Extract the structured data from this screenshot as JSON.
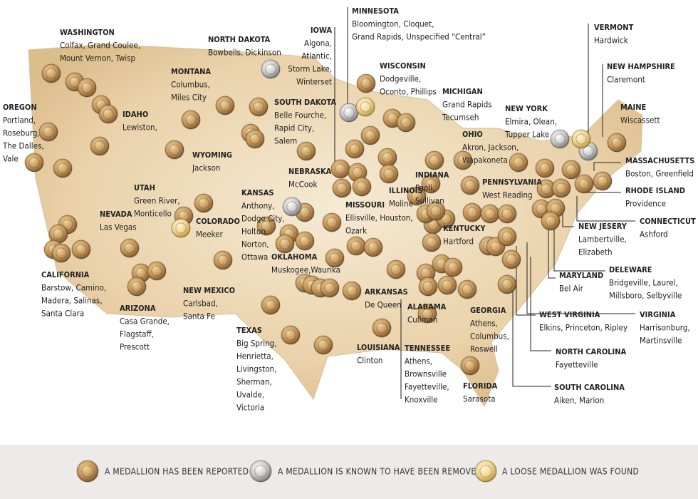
{
  "labels": [
    {
      "state": "WASHINGTON",
      "places": [
        "Colfax, Grand Coulee,",
        "Mount Vernon, Twisp"
      ]
    },
    {
      "state": "OREGON",
      "places": [
        "Portland,",
        "Roseburg,",
        "The Dalles,",
        "Vale"
      ]
    },
    {
      "state": "IDAHO",
      "places": [
        "Lewiston,"
      ]
    },
    {
      "state": "MONTANA",
      "places": [
        "Columbus,",
        "Miles City"
      ]
    },
    {
      "state": "NORTH DAKOTA",
      "places": [
        "Bowbells, Dickinson"
      ]
    },
    {
      "state": "SOUTH DAKOTA",
      "places": [
        "Belle Fourche,",
        "Rapid City,",
        "Salem"
      ]
    },
    {
      "state": "WYOMING",
      "places": [
        "Jackson"
      ]
    },
    {
      "state": "UTAH",
      "places": [
        "Green River,",
        "Monticello"
      ]
    },
    {
      "state": "NEVADA",
      "places": [
        "Las Vegas"
      ]
    },
    {
      "state": "COLORADO",
      "places": [
        "Meeker"
      ]
    },
    {
      "state": "CALIFORNIA",
      "places": [
        "Barstow, Camino,",
        "Madera, Salinas,",
        "Santa Clara"
      ]
    },
    {
      "state": "ARIZONA",
      "places": [
        "Casa Grande,",
        "Flagstaff,",
        "Prescott"
      ]
    },
    {
      "state": "NEW MEXICO",
      "places": [
        "Carlsbad,",
        "Santa Fe"
      ]
    },
    {
      "state": "TEXAS",
      "places": [
        "Big Spring,",
        "Henrietta,",
        "Livingston,",
        "Sherman,",
        "Uvalde,",
        "Victoria"
      ]
    },
    {
      "state": "KANSAS",
      "places": [
        "Anthony,",
        "Dodge City,",
        "Holton,",
        "Norton,",
        "Ottawa"
      ]
    },
    {
      "state": "NEBRASKA",
      "places": [
        "McCook"
      ]
    },
    {
      "state": "OKLAHOMA",
      "places": [
        "Muskogee,Waurika"
      ]
    },
    {
      "state": "IOWA",
      "places": [
        "Algona,",
        "Atlantic,",
        "Storm Lake,",
        "Winterset"
      ]
    },
    {
      "state": "MINNESOTA",
      "places": [
        "Bloomington, Cloquet,",
        "Grand Rapids, Unspecified “Central”"
      ]
    },
    {
      "state": "WISCONSIN",
      "places": [
        "Dodgeville,",
        "Oconto, Phillips"
      ]
    },
    {
      "state": "MICHIGAN",
      "places": [
        "Grand Rapids",
        "Tecumseh"
      ]
    },
    {
      "state": "MISSOURI",
      "places": [
        "Ellisville, Houston,",
        "Ozark"
      ]
    },
    {
      "state": "ILLINOIS",
      "places": [
        "Moline"
      ]
    },
    {
      "state": "INDIANA",
      "places": [
        "Paoli,",
        "Sullivan"
      ]
    },
    {
      "state": "OHIO",
      "places": [
        "Akron, Jackson,",
        "Wapakoneta"
      ]
    },
    {
      "state": "ARKANSAS",
      "places": [
        "De Queen"
      ]
    },
    {
      "state": "LOUISIANA",
      "places": [
        "Clinton"
      ]
    },
    {
      "state": "ALABAMA",
      "places": [
        "Cullman"
      ]
    },
    {
      "state": "TENNESSEE",
      "places": [
        "Athens,",
        "Brownsville",
        "Fayetteville,",
        "Knoxville"
      ]
    },
    {
      "state": "KENTUCKY",
      "places": [
        "Hartford"
      ]
    },
    {
      "state": "GEORGIA",
      "places": [
        "Athens,",
        "Columbus,",
        "Roswell"
      ]
    },
    {
      "state": "FLORIDA",
      "places": [
        "Sarasota"
      ]
    },
    {
      "state": "NEW YORK",
      "places": [
        "Elmira, Olean,",
        "Tupper Lake"
      ]
    },
    {
      "state": "PENNSYLVANIA",
      "places": [
        "West Reading"
      ]
    },
    {
      "state": "VERMONT",
      "places": [
        "Hardwick"
      ]
    },
    {
      "state": "NEW HAMPSHIRE",
      "places": [
        "Claremont"
      ]
    },
    {
      "state": "MAINE",
      "places": [
        "Wiscassett"
      ]
    },
    {
      "state": "MASSACHUSETTS",
      "places": [
        "Boston, Greenfield"
      ]
    },
    {
      "state": "RHODE ISLAND",
      "places": [
        "Providence"
      ]
    },
    {
      "state": "CONNECTICUT",
      "places": [
        "Ashford"
      ]
    },
    {
      "state": "NEW JESERY",
      "places": [
        "Lambertville,",
        "Elizabeth"
      ]
    },
    {
      "state": "DELEWARE",
      "places": [
        "Bridgeville, Laurel,",
        "Millsboro, Selbyville"
      ]
    },
    {
      "state": "MARYLAND",
      "places": [
        "Bel Air"
      ]
    },
    {
      "state": "VIRGINIA",
      "places": [
        "Harrisonburg,",
        "Martinsville"
      ]
    },
    {
      "state": "WEST VIRGINIA",
      "places": [
        "Elkins, Princeton, Ripley"
      ]
    },
    {
      "state": "NORTH CAROLINA",
      "places": [
        "Fayetteville"
      ]
    },
    {
      "state": "SOUTH CAROLINA",
      "places": [
        "Aiken, Marion"
      ]
    }
  ],
  "legend": {
    "items": [
      "A MEDALLION HAS BEEN REPORTED",
      "A MEDALLION IS KNOWN TO HAVE BEEN REMOVED",
      "A LOOSE MEDALLION WAS FOUND"
    ]
  }
}
